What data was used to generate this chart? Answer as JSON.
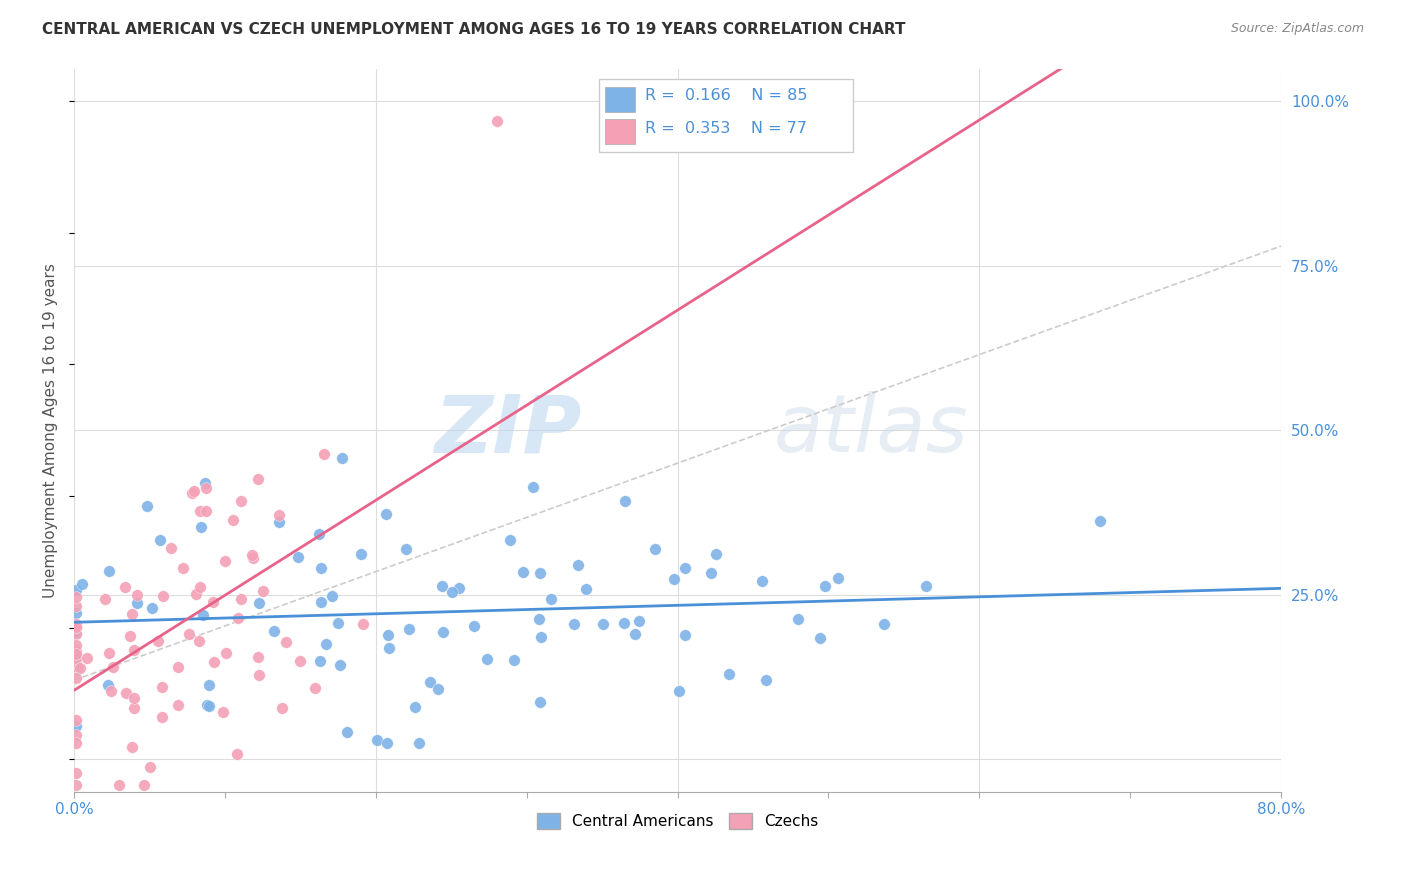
{
  "title": "CENTRAL AMERICAN VS CZECH UNEMPLOYMENT AMONG AGES 16 TO 19 YEARS CORRELATION CHART",
  "source": "Source: ZipAtlas.com",
  "ylabel": "Unemployment Among Ages 16 to 19 years",
  "xlim": [
    0.0,
    0.8
  ],
  "ylim": [
    -0.05,
    1.05
  ],
  "x_ticks": [
    0.0,
    0.1,
    0.2,
    0.3,
    0.4,
    0.5,
    0.6,
    0.7,
    0.8
  ],
  "x_tick_labels": [
    "0.0%",
    "",
    "",
    "",
    "",
    "",
    "",
    "",
    "80.0%"
  ],
  "y_ticks_right": [
    0.0,
    0.25,
    0.5,
    0.75,
    1.0
  ],
  "y_tick_labels_right": [
    "",
    "25.0%",
    "50.0%",
    "75.0%",
    "100.0%"
  ],
  "blue_color": "#7EB3E8",
  "pink_color": "#F4A0B5",
  "blue_line_color": "#4A90D9",
  "pink_line_color": "#E8638A",
  "grid_color": "#DDDDDD",
  "background_color": "#FFFFFF",
  "watermark_zip": "ZIP",
  "watermark_atlas": "atlas",
  "legend_R_blue": "0.166",
  "legend_N_blue": "85",
  "legend_R_pink": "0.353",
  "legend_N_pink": "77",
  "blue_seed": 42,
  "pink_seed": 7,
  "blue_N": 85,
  "pink_N": 77,
  "blue_R": 0.166,
  "pink_R": 0.353,
  "dashed_line_color": "#CCCCCC",
  "tick_label_color": "#4A90D9",
  "title_color": "#333333",
  "source_color": "#888888",
  "ylabel_color": "#555555"
}
